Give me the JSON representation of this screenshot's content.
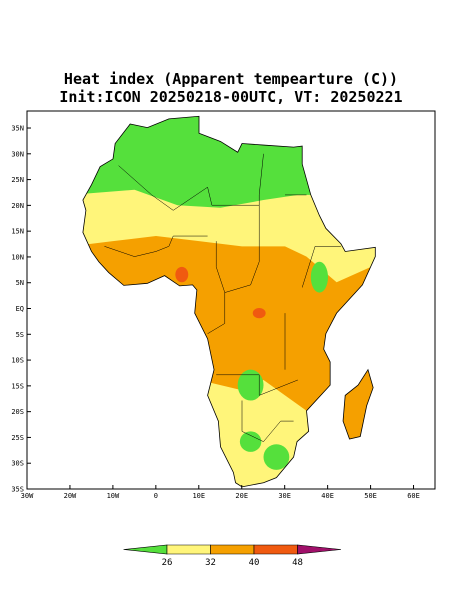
{
  "map": {
    "title": [
      "Heat index (Apparent tempearture (C))",
      "Init:ICON 20250218-00UTC, VT: 20250221"
    ],
    "xlim": [
      -30,
      65
    ],
    "ylim": [
      -35,
      38.3
    ],
    "xticks": [
      {
        "value": -30,
        "label": "30W"
      },
      {
        "value": -20,
        "label": "20W"
      },
      {
        "value": -10,
        "label": "10W"
      },
      0,
      {
        "value": 10,
        "label": "10E"
      },
      {
        "value": 20,
        "label": "20E"
      },
      {
        "value": 30,
        "label": "30E"
      },
      {
        "value": 40,
        "label": "40E"
      },
      {
        "value": 50,
        "label": "50E"
      },
      {
        "value": 60,
        "label": "60E"
      }
    ],
    "yticks": [
      {
        "value": 35,
        "label": "35N"
      },
      {
        "value": 30,
        "label": "30N"
      },
      {
        "value": 25,
        "label": "25N"
      },
      {
        "value": 20,
        "label": "20N"
      },
      {
        "value": 15,
        "label": "15N"
      },
      {
        "value": 10,
        "label": "10N"
      },
      {
        "value": 5,
        "label": "5N"
      },
      {
        "value": 0,
        "label": "EQ"
      },
      {
        "value": -5,
        "label": "5S"
      },
      {
        "value": -10,
        "label": "10S"
      },
      {
        "value": -15,
        "label": "15S"
      },
      {
        "value": -20,
        "label": "20S"
      },
      {
        "value": -25,
        "label": "25S"
      },
      {
        "value": -30,
        "label": "30S"
      },
      {
        "value": -35,
        "label": "35S"
      }
    ],
    "colorbar": {
      "ticks": [
        26,
        32,
        40,
        48
      ],
      "colors": [
        "#55e03c",
        "#fff57a",
        "#f5a000",
        "#f05a10",
        "#a0106a"
      ]
    }
  }
}
